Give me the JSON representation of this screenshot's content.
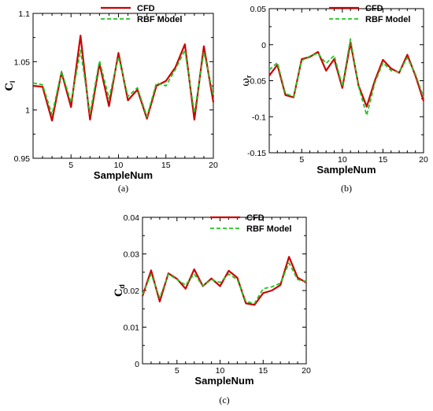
{
  "chart_data": [
    {
      "type": "line",
      "panel_label": "(a)",
      "xlabel": "SampleNum",
      "ylabel_base": "C",
      "ylabel_sub": "l",
      "xlim": [
        1,
        20
      ],
      "ylim": [
        0.95,
        1.1
      ],
      "xticks": [
        5,
        10,
        15,
        20
      ],
      "yticks": [
        0.95,
        1,
        1.05,
        1.1
      ],
      "ytick_labels": [
        "0.95",
        "1",
        "1.05",
        "1.1"
      ],
      "legend_position": "top-right",
      "grid": false,
      "x": [
        1,
        2,
        3,
        4,
        5,
        6,
        7,
        8,
        9,
        10,
        11,
        12,
        13,
        14,
        15,
        16,
        17,
        18,
        19,
        20
      ],
      "series": [
        {
          "name": "CFD",
          "color": "#cc0000",
          "dash": "solid",
          "values": [
            1.025,
            1.024,
            0.989,
            1.039,
            1.003,
            1.077,
            0.99,
            1.048,
            1.004,
            1.059,
            1.01,
            1.021,
            0.991,
            1.025,
            1.03,
            1.044,
            1.068,
            0.99,
            1.066,
            1.008
          ]
        },
        {
          "name": "RBF Model",
          "color": "#22c322",
          "dash": "dashed",
          "values": [
            1.028,
            1.026,
            0.995,
            1.04,
            1.008,
            1.062,
            0.996,
            1.051,
            1.012,
            1.055,
            1.014,
            1.023,
            0.993,
            1.028,
            1.025,
            1.042,
            1.062,
            0.997,
            1.06,
            1.015
          ]
        }
      ]
    },
    {
      "type": "line",
      "panel_label": "(b)",
      "xlabel": "SampleNum",
      "ylabel_base": "ω",
      "ylabel_sub": "r",
      "xlim": [
        1,
        20
      ],
      "ylim": [
        -0.15,
        0.05
      ],
      "xticks": [
        5,
        10,
        15,
        20
      ],
      "yticks": [
        -0.15,
        -0.1,
        -0.05,
        0,
        0.05
      ],
      "ytick_labels": [
        "-0.15",
        "-0.1",
        "-0.05",
        "0",
        "0.05"
      ],
      "legend_position": "top-right",
      "grid": false,
      "x": [
        1,
        2,
        3,
        4,
        5,
        6,
        7,
        8,
        9,
        10,
        11,
        12,
        13,
        14,
        15,
        16,
        17,
        18,
        19,
        20
      ],
      "series": [
        {
          "name": "CFD",
          "color": "#cc0000",
          "dash": "solid",
          "values": [
            -0.043,
            -0.028,
            -0.07,
            -0.073,
            -0.02,
            -0.017,
            -0.01,
            -0.036,
            -0.02,
            -0.06,
            0.003,
            -0.057,
            -0.086,
            -0.05,
            -0.021,
            -0.033,
            -0.039,
            -0.014,
            -0.043,
            -0.078
          ]
        },
        {
          "name": "RBF Model",
          "color": "#22c322",
          "dash": "dashed",
          "values": [
            -0.035,
            -0.025,
            -0.068,
            -0.072,
            -0.022,
            -0.016,
            -0.012,
            -0.026,
            -0.015,
            -0.058,
            0.008,
            -0.058,
            -0.098,
            -0.053,
            -0.025,
            -0.036,
            -0.038,
            -0.018,
            -0.041,
            -0.073
          ]
        }
      ]
    },
    {
      "type": "line",
      "panel_label": "(c)",
      "xlabel": "SampleNum",
      "ylabel_base": "C",
      "ylabel_sub": "d",
      "xlim": [
        1,
        20
      ],
      "ylim": [
        0,
        0.04
      ],
      "xticks": [
        5,
        10,
        15,
        20
      ],
      "yticks": [
        0,
        0.01,
        0.02,
        0.03,
        0.04
      ],
      "ytick_labels": [
        "0",
        "0.01",
        "0.02",
        "0.03",
        "0.04"
      ],
      "legend_position": "top-right",
      "grid": false,
      "x": [
        1,
        2,
        3,
        4,
        5,
        6,
        7,
        8,
        9,
        10,
        11,
        12,
        13,
        14,
        15,
        16,
        17,
        18,
        19,
        20
      ],
      "series": [
        {
          "name": "CFD",
          "color": "#cc0000",
          "dash": "solid",
          "values": [
            0.0185,
            0.0255,
            0.017,
            0.0247,
            0.0232,
            0.0205,
            0.0258,
            0.0212,
            0.0233,
            0.0212,
            0.0254,
            0.0235,
            0.0165,
            0.0161,
            0.0193,
            0.02,
            0.0215,
            0.0292,
            0.0235,
            0.0222
          ]
        },
        {
          "name": "RBF Model",
          "color": "#22c322",
          "dash": "dashed",
          "values": [
            0.019,
            0.0245,
            0.018,
            0.0245,
            0.023,
            0.0215,
            0.0245,
            0.0213,
            0.023,
            0.0222,
            0.0245,
            0.023,
            0.017,
            0.0165,
            0.0205,
            0.021,
            0.022,
            0.0275,
            0.023,
            0.0225
          ]
        }
      ]
    }
  ]
}
